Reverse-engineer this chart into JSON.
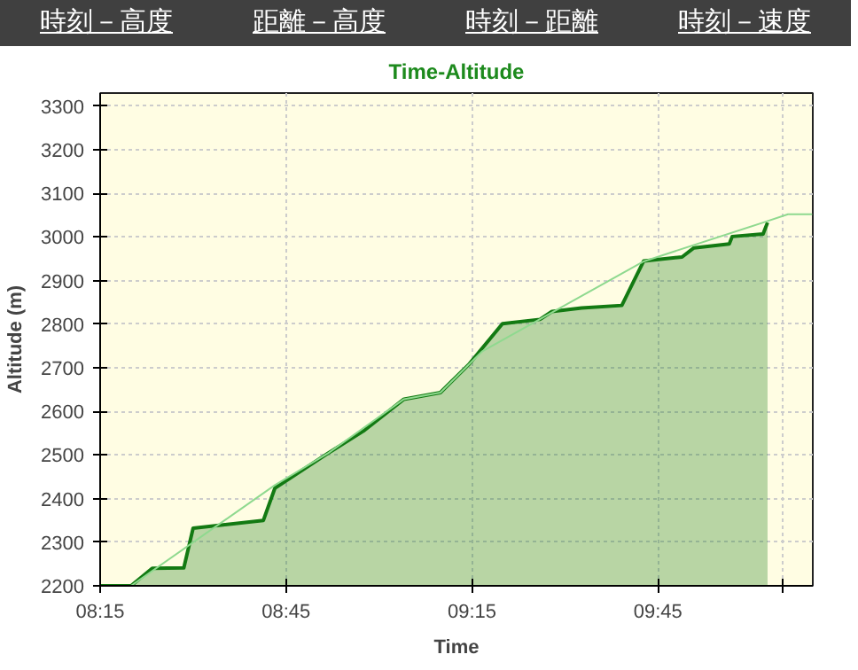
{
  "chart_data": {
    "type": "area",
    "title": "Time-Altitude",
    "xlabel": "Time",
    "ylabel": "Altitude (m)",
    "annotations": [
      "時刻－高度",
      "距離－高度",
      "時刻－距離",
      "時刻－速度"
    ],
    "series": [
      {
        "color": "#137a13",
        "x": [
          8.25,
          8.333,
          8.39,
          8.475,
          8.5,
          8.689,
          8.72,
          8.863,
          8.958,
          9.067,
          9.165,
          9.243,
          9.332,
          9.433,
          9.465,
          9.545,
          9.653,
          9.712,
          9.815,
          9.847,
          9.942,
          9.95,
          10.033,
          10.045
        ],
        "values": [
          2200,
          2200,
          2240,
          2241,
          2332,
          2350,
          2424,
          2504,
          2555,
          2628,
          2643,
          2709,
          2801,
          2811,
          2829,
          2837,
          2843,
          2945,
          2954,
          2975,
          2984,
          3001,
          3007,
          3033
        ]
      },
      {
        "type": "line",
        "color": "#8fd98f",
        "x": [
          8.333,
          8.72,
          8.863,
          9.067,
          9.165,
          9.278,
          9.712,
          10.033,
          10.1,
          10.165
        ],
        "values": [
          2200,
          2431,
          2504,
          2628,
          2643,
          2738,
          2944,
          3033,
          3052,
          3052
        ]
      }
    ],
    "xlim": [
      8.25,
      10.1667
    ],
    "ylim": [
      2200,
      3330
    ],
    "xticks": [
      {
        "value": 8.25,
        "label": "08:15"
      },
      {
        "value": 8.75,
        "label": "08:45"
      },
      {
        "value": 9.25,
        "label": "09:15"
      },
      {
        "value": 9.75,
        "label": "09:45"
      },
      {
        "value": 10.0833,
        "label": null
      }
    ],
    "yticks": [
      2200,
      2300,
      2400,
      2500,
      2600,
      2700,
      2800,
      2900,
      3000,
      3100,
      3200,
      3300
    ],
    "grid": true
  }
}
